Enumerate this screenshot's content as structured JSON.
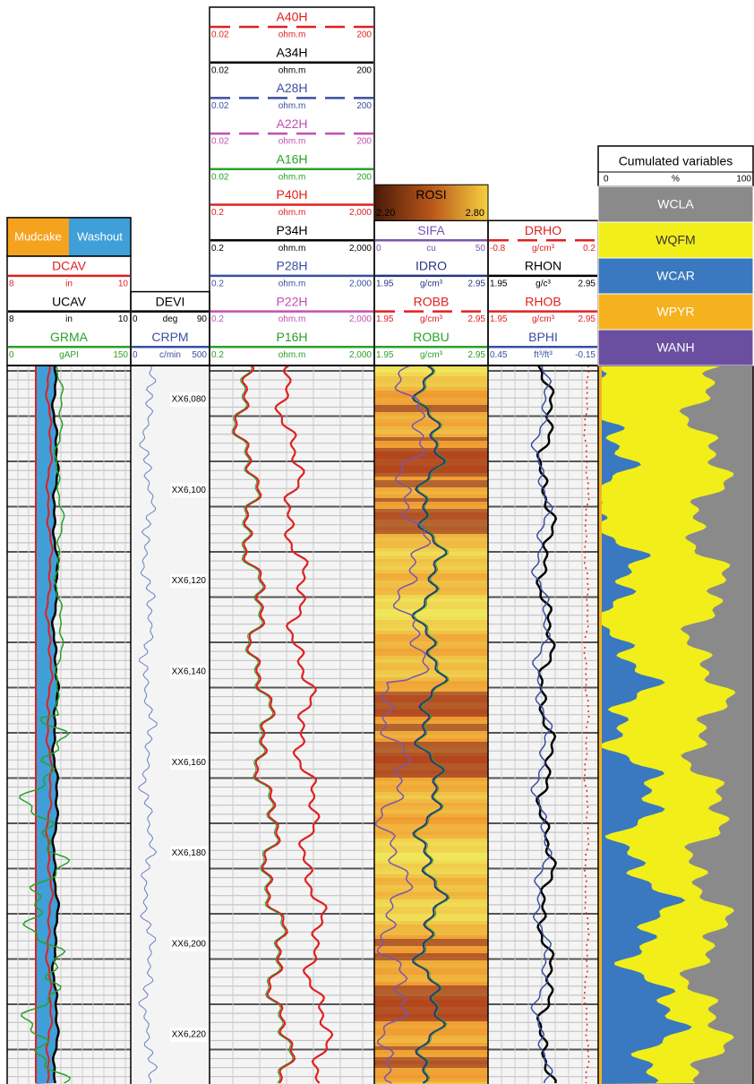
{
  "tracks": [
    {
      "legend": {
        "left": "Mudcake",
        "right": "Washout"
      },
      "curves": [
        {
          "name": "DCAV",
          "left": "8",
          "unit": "in",
          "right": "10",
          "color": "#e02020"
        },
        {
          "name": "UCAV",
          "left": "8",
          "unit": "in",
          "right": "10",
          "color": "#000000"
        },
        {
          "name": "GRMA",
          "left": "0",
          "unit": "gAPI",
          "right": "150",
          "color": "#2aa02a"
        }
      ]
    },
    {
      "curves": [
        {
          "name": "DEVI",
          "left": "0",
          "unit": "deg",
          "right": "90",
          "color": "#000000"
        },
        {
          "name": "CRPM",
          "left": "0",
          "unit": "c/min",
          "right": "500",
          "color": "#3a4fa0"
        }
      ]
    },
    {
      "curves": [
        {
          "name": "A40H",
          "left": "0.02",
          "unit": "ohm.m",
          "right": "200",
          "color": "#e02020",
          "dash": true
        },
        {
          "name": "A34H",
          "left": "0.02",
          "unit": "ohm.m",
          "right": "200",
          "color": "#000000"
        },
        {
          "name": "A28H",
          "left": "0.02",
          "unit": "ohm.m",
          "right": "200",
          "color": "#3a4fa0",
          "dash": true
        },
        {
          "name": "A22H",
          "left": "0.02",
          "unit": "ohm.m",
          "right": "200",
          "color": "#c050b0",
          "dash": true
        },
        {
          "name": "A16H",
          "left": "0.02",
          "unit": "ohm.m",
          "right": "200",
          "color": "#2aa02a"
        },
        {
          "name": "P40H",
          "left": "0.2",
          "unit": "ohm.m",
          "right": "2,000",
          "color": "#e02020"
        },
        {
          "name": "P34H",
          "left": "0.2",
          "unit": "ohm.m",
          "right": "2,000",
          "color": "#000000"
        },
        {
          "name": "P28H",
          "left": "0.2",
          "unit": "ohm.m",
          "right": "2,000",
          "color": "#3a4fa0"
        },
        {
          "name": "P22H",
          "left": "0.2",
          "unit": "ohm.m",
          "right": "2,000",
          "color": "#c050b0"
        },
        {
          "name": "P16H",
          "left": "0.2",
          "unit": "ohm.m",
          "right": "2,000",
          "color": "#2aa02a"
        }
      ]
    },
    {
      "image": {
        "name": "ROSI",
        "left": "2.20",
        "right": "2.80"
      },
      "curves": [
        {
          "name": "SIFA",
          "left": "0",
          "unit": "cu",
          "right": "50",
          "color": "#7a55b0"
        },
        {
          "name": "IDRO",
          "left": "1.95",
          "unit": "g/cm³",
          "right": "2.95",
          "color": "#2a3580"
        },
        {
          "name": "ROBB",
          "left": "1.95",
          "unit": "g/cm³",
          "right": "2.95",
          "color": "#e02020",
          "dash": true
        },
        {
          "name": "ROBU",
          "left": "1.95",
          "unit": "g/cm³",
          "right": "2.95",
          "color": "#2aa02a"
        }
      ]
    },
    {
      "curves": [
        {
          "name": "DRHO",
          "left": "-0.8",
          "unit": "g/cm³",
          "right": "0.2",
          "color": "#e02020",
          "dash": true
        },
        {
          "name": "RHON",
          "left": "1.95",
          "unit": "g/c³",
          "right": "2.95",
          "color": "#000000"
        },
        {
          "name": "RHOB",
          "left": "1.95",
          "unit": "g/cm³",
          "right": "2.95",
          "color": "#e02020"
        },
        {
          "name": "BPHI",
          "left": "0.45",
          "unit": "ft³/ft³",
          "right": "-0.15",
          "color": "#3a4fa0"
        }
      ]
    }
  ],
  "cumulated": {
    "title": "Cumulated variables",
    "left": "0",
    "unit": "%",
    "right": "100",
    "variables": [
      {
        "name": "WCLA",
        "color": "#8a8a8a"
      },
      {
        "name": "WQFM",
        "color": "#f2ee1a"
      },
      {
        "name": "WCAR",
        "color": "#3a78c0"
      },
      {
        "name": "WPYR",
        "color": "#f5b21e"
      },
      {
        "name": "WANH",
        "color": "#6a4fa0"
      }
    ]
  },
  "depths": [
    "XX6,080",
    "XX6,100",
    "XX6,120",
    "XX6,140",
    "XX6,160",
    "XX6,180",
    "XX6,200",
    "XX6,220"
  ]
}
